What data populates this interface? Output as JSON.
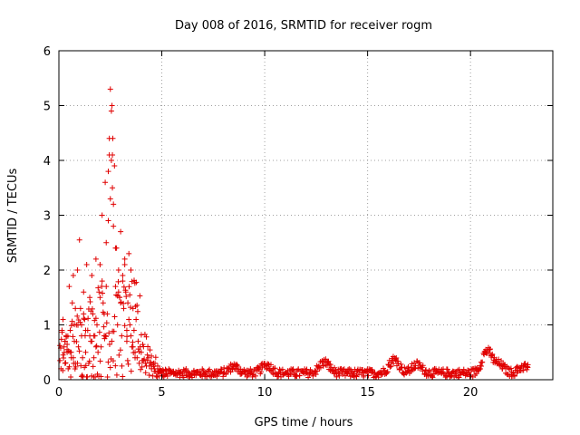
{
  "chart_data": {
    "type": "scatter",
    "title": "Day 008 of 2016, SRMTID for receiver rogm",
    "xlabel": "GPS time / hours",
    "ylabel": "SRMTID / TECUs",
    "xlim": [
      0,
      24
    ],
    "ylim": [
      0,
      6
    ],
    "xticks": [
      0,
      5,
      10,
      15,
      20
    ],
    "yticks": [
      0,
      1,
      2,
      3,
      4,
      5,
      6
    ],
    "grid": true,
    "marker": "+",
    "color": "#e00000",
    "series": [
      {
        "name": "SRMTID",
        "x": [
          0.05,
          0.1,
          0.15,
          0.2,
          0.25,
          0.3,
          0.35,
          0.4,
          0.45,
          0.5,
          0.55,
          0.6,
          0.65,
          0.7,
          0.75,
          0.8,
          0.85,
          0.9,
          0.95,
          1.0,
          1.05,
          1.1,
          1.15,
          1.2,
          1.25,
          1.3,
          1.35,
          1.4,
          1.45,
          1.5,
          1.55,
          1.6,
          1.65,
          1.7,
          1.75,
          1.8,
          1.85,
          1.9,
          1.95,
          2.0,
          2.05,
          2.1,
          2.15,
          2.2,
          2.25,
          2.3,
          2.35,
          2.4,
          2.45,
          2.5,
          2.55,
          2.6,
          2.65,
          2.7,
          2.75,
          2.8,
          2.85,
          2.9,
          2.95,
          3.0,
          3.05,
          3.1,
          3.15,
          3.2,
          3.25,
          3.3,
          3.35,
          3.4,
          3.45,
          3.5,
          3.55,
          3.6,
          3.65,
          3.7,
          3.75,
          3.8,
          3.85,
          3.9,
          3.95,
          4.0,
          4.1,
          4.2,
          4.3,
          4.4,
          4.5,
          4.6,
          4.7,
          4.8,
          4.9,
          5.0,
          0.3,
          0.6,
          0.9,
          1.2,
          1.5,
          1.8,
          2.1,
          2.4,
          2.55,
          2.6,
          2.65,
          3.0,
          3.3,
          3.6,
          0.2,
          0.8,
          1.1,
          1.7,
          2.3,
          2.5,
          2.75,
          3.1,
          3.4,
          0.4,
          1.3,
          2.0,
          2.45,
          2.58,
          2.62,
          3.5,
          0.7,
          1.6,
          2.2,
          2.9,
          3.2,
          3.7,
          4.05,
          4.25,
          4.45,
          4.65
        ],
        "y": [
          0.35,
          0.2,
          0.9,
          1.1,
          0.6,
          0.3,
          0.8,
          0.5,
          0.2,
          1.7,
          0.9,
          0.4,
          1.4,
          1.9,
          0.7,
          0.3,
          1.0,
          2.0,
          0.6,
          2.55,
          1.3,
          0.8,
          0.4,
          1.6,
          1.1,
          0.5,
          2.1,
          0.9,
          0.3,
          1.5,
          0.7,
          1.9,
          1.2,
          0.4,
          0.8,
          2.2,
          1.0,
          0.5,
          1.6,
          2.1,
          0.6,
          3.0,
          1.4,
          0.8,
          3.6,
          2.5,
          1.2,
          3.8,
          4.4,
          5.3,
          4.9,
          4.1,
          2.8,
          3.9,
          1.7,
          2.4,
          1.0,
          2.0,
          1.5,
          2.7,
          0.8,
          1.9,
          1.3,
          2.1,
          1.6,
          0.7,
          1.4,
          2.3,
          1.0,
          2.0,
          0.6,
          1.3,
          0.9,
          0.5,
          1.1,
          0.4,
          0.7,
          0.3,
          0.6,
          0.5,
          0.35,
          0.3,
          0.45,
          0.25,
          0.2,
          0.3,
          0.15,
          0.25,
          0.2,
          0.15,
          0.7,
          0.5,
          0.3,
          1.2,
          0.8,
          0.6,
          1.8,
          2.9,
          4.0,
          3.5,
          3.2,
          1.4,
          0.9,
          0.6,
          0.45,
          1.3,
          1.0,
          0.8,
          1.7,
          3.3,
          2.4,
          1.8,
          1.1,
          0.55,
          0.9,
          1.5,
          4.1,
          5.0,
          4.4,
          0.8,
          0.4,
          0.7,
          1.2,
          1.6,
          2.2,
          0.4,
          0.35,
          0.25,
          0.3,
          0.2
        ],
        "baseline": {
          "x_start": 4.8,
          "x_end": 22.8,
          "step": 0.06,
          "level": 0.12,
          "bumps": [
            {
              "x": 8.5,
              "height": 0.12
            },
            {
              "x": 10.1,
              "height": 0.15
            },
            {
              "x": 12.9,
              "height": 0.2
            },
            {
              "x": 16.3,
              "height": 0.25
            },
            {
              "x": 17.4,
              "height": 0.15
            },
            {
              "x": 20.8,
              "height": 0.4
            },
            {
              "x": 21.4,
              "height": 0.15
            },
            {
              "x": 22.6,
              "height": 0.12
            }
          ]
        }
      }
    ]
  }
}
